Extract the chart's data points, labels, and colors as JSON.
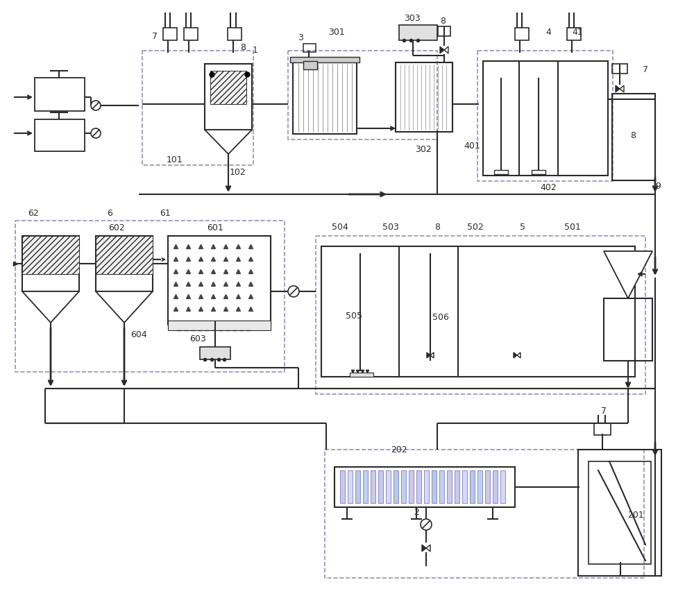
{
  "bg": "#ffffff",
  "lc": "#2a2a2a",
  "dc": "#9090bb",
  "figsize": [
    10.0,
    8.72
  ],
  "dpi": 100
}
